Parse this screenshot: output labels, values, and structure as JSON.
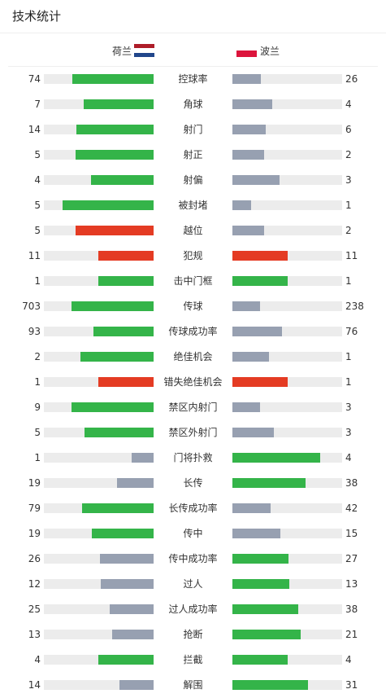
{
  "title": "技术统计",
  "colors": {
    "win": "#34b449",
    "lose": "#97a0b1",
    "foul": "#e43b23",
    "track": "#ececec"
  },
  "teams": {
    "home": {
      "name": "荷兰",
      "flag": [
        "#ae1c28",
        "#ffffff",
        "#21468b"
      ]
    },
    "away": {
      "name": "波兰",
      "flag": [
        "#ffffff",
        "#dc143c"
      ]
    }
  },
  "stats": [
    {
      "label": "控球率",
      "home": "74",
      "away": "26",
      "hf": 0.74,
      "af": 0.26,
      "hc": "win",
      "ac": "lose"
    },
    {
      "label": "角球",
      "home": "7",
      "away": "4",
      "hf": 0.64,
      "af": 0.36,
      "hc": "win",
      "ac": "lose"
    },
    {
      "label": "射门",
      "home": "14",
      "away": "6",
      "hf": 0.7,
      "af": 0.3,
      "hc": "win",
      "ac": "lose"
    },
    {
      "label": "射正",
      "home": "5",
      "away": "2",
      "hf": 0.71,
      "af": 0.29,
      "hc": "win",
      "ac": "lose"
    },
    {
      "label": "射偏",
      "home": "4",
      "away": "3",
      "hf": 0.57,
      "af": 0.43,
      "hc": "win",
      "ac": "lose"
    },
    {
      "label": "被封堵",
      "home": "5",
      "away": "1",
      "hf": 0.83,
      "af": 0.17,
      "hc": "win",
      "ac": "lose"
    },
    {
      "label": "越位",
      "home": "5",
      "away": "2",
      "hf": 0.71,
      "af": 0.29,
      "hc": "foul",
      "ac": "lose"
    },
    {
      "label": "犯规",
      "home": "11",
      "away": "11",
      "hf": 0.5,
      "af": 0.5,
      "hc": "foul",
      "ac": "foul"
    },
    {
      "label": "击中门框",
      "home": "1",
      "away": "1",
      "hf": 0.5,
      "af": 0.5,
      "hc": "win",
      "ac": "win"
    },
    {
      "label": "传球",
      "home": "703",
      "away": "238",
      "hf": 0.75,
      "af": 0.25,
      "hc": "win",
      "ac": "lose"
    },
    {
      "label": "传球成功率",
      "home": "93",
      "away": "76",
      "hf": 0.55,
      "af": 0.45,
      "hc": "win",
      "ac": "lose"
    },
    {
      "label": "绝佳机会",
      "home": "2",
      "away": "1",
      "hf": 0.67,
      "af": 0.33,
      "hc": "win",
      "ac": "lose"
    },
    {
      "label": "错失绝佳机会",
      "home": "1",
      "away": "1",
      "hf": 0.5,
      "af": 0.5,
      "hc": "foul",
      "ac": "foul"
    },
    {
      "label": "禁区内射门",
      "home": "9",
      "away": "3",
      "hf": 0.75,
      "af": 0.25,
      "hc": "win",
      "ac": "lose"
    },
    {
      "label": "禁区外射门",
      "home": "5",
      "away": "3",
      "hf": 0.63,
      "af": 0.38,
      "hc": "win",
      "ac": "lose"
    },
    {
      "label": "门将扑救",
      "home": "1",
      "away": "4",
      "hf": 0.2,
      "af": 0.8,
      "hc": "lose",
      "ac": "win"
    },
    {
      "label": "长传",
      "home": "19",
      "away": "38",
      "hf": 0.33,
      "af": 0.67,
      "hc": "lose",
      "ac": "win"
    },
    {
      "label": "长传成功率",
      "home": "79",
      "away": "42",
      "hf": 0.65,
      "af": 0.35,
      "hc": "win",
      "ac": "lose"
    },
    {
      "label": "传中",
      "home": "19",
      "away": "15",
      "hf": 0.56,
      "af": 0.44,
      "hc": "win",
      "ac": "lose"
    },
    {
      "label": "传中成功率",
      "home": "26",
      "away": "27",
      "hf": 0.49,
      "af": 0.51,
      "hc": "lose",
      "ac": "win"
    },
    {
      "label": "过人",
      "home": "12",
      "away": "13",
      "hf": 0.48,
      "af": 0.52,
      "hc": "lose",
      "ac": "win"
    },
    {
      "label": "过人成功率",
      "home": "25",
      "away": "38",
      "hf": 0.4,
      "af": 0.6,
      "hc": "lose",
      "ac": "win"
    },
    {
      "label": "抢断",
      "home": "13",
      "away": "21",
      "hf": 0.38,
      "af": 0.62,
      "hc": "lose",
      "ac": "win"
    },
    {
      "label": "拦截",
      "home": "4",
      "away": "4",
      "hf": 0.5,
      "af": 0.5,
      "hc": "win",
      "ac": "win"
    },
    {
      "label": "解围",
      "home": "14",
      "away": "31",
      "hf": 0.31,
      "af": 0.69,
      "hc": "lose",
      "ac": "win"
    }
  ]
}
